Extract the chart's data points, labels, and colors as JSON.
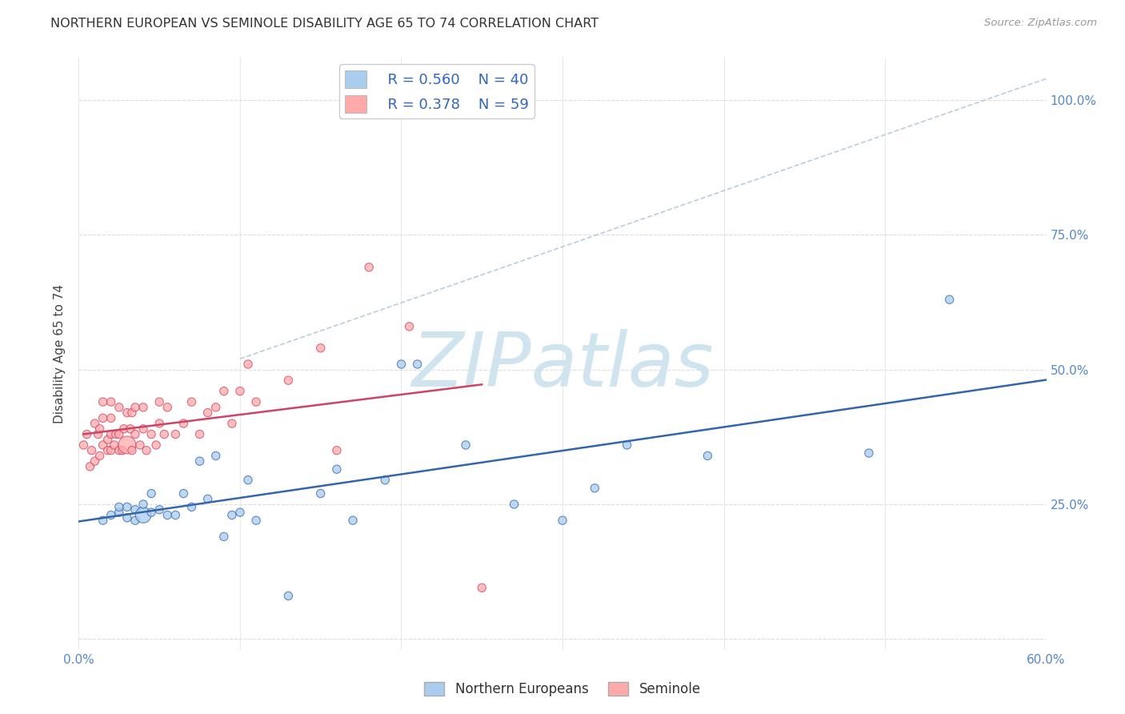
{
  "title": "NORTHERN EUROPEAN VS SEMINOLE DISABILITY AGE 65 TO 74 CORRELATION CHART",
  "source": "Source: ZipAtlas.com",
  "ylabel": "Disability Age 65 to 74",
  "legend_label_1": "Northern Europeans",
  "legend_label_2": "Seminole",
  "R1": 0.56,
  "N1": 40,
  "R2": 0.378,
  "N2": 59,
  "color_blue": "#AACCEE",
  "color_pink": "#FFAAAA",
  "color_line_blue": "#3366AA",
  "color_line_pink": "#CC4466",
  "xlim": [
    0.0,
    0.6
  ],
  "ylim": [
    -0.02,
    1.08
  ],
  "xticks": [
    0.0,
    0.1,
    0.2,
    0.3,
    0.4,
    0.5,
    0.6
  ],
  "xtick_labels": [
    "0.0%",
    "",
    "",
    "",
    "",
    "",
    "60.0%"
  ],
  "yticks": [
    0.0,
    0.25,
    0.5,
    0.75,
    1.0
  ],
  "ytick_labels_right": [
    "",
    "25.0%",
    "50.0%",
    "75.0%",
    "100.0%"
  ],
  "blue_x": [
    0.015,
    0.02,
    0.025,
    0.025,
    0.03,
    0.03,
    0.035,
    0.035,
    0.04,
    0.04,
    0.045,
    0.045,
    0.05,
    0.055,
    0.06,
    0.065,
    0.07,
    0.075,
    0.08,
    0.085,
    0.09,
    0.095,
    0.1,
    0.105,
    0.11,
    0.13,
    0.15,
    0.16,
    0.17,
    0.19,
    0.2,
    0.21,
    0.24,
    0.27,
    0.3,
    0.32,
    0.34,
    0.39,
    0.49,
    0.54
  ],
  "blue_y": [
    0.22,
    0.23,
    0.235,
    0.245,
    0.225,
    0.245,
    0.22,
    0.24,
    0.23,
    0.25,
    0.235,
    0.27,
    0.24,
    0.23,
    0.23,
    0.27,
    0.245,
    0.33,
    0.26,
    0.34,
    0.19,
    0.23,
    0.235,
    0.295,
    0.22,
    0.08,
    0.27,
    0.315,
    0.22,
    0.295,
    0.51,
    0.51,
    0.36,
    0.25,
    0.22,
    0.28,
    0.36,
    0.34,
    0.345,
    0.63
  ],
  "blue_sizes": [
    55,
    55,
    55,
    55,
    55,
    55,
    55,
    55,
    200,
    55,
    55,
    55,
    55,
    55,
    55,
    55,
    55,
    55,
    55,
    55,
    55,
    55,
    55,
    55,
    55,
    55,
    55,
    55,
    55,
    55,
    55,
    55,
    55,
    55,
    55,
    55,
    55,
    55,
    55,
    55
  ],
  "pink_x": [
    0.003,
    0.005,
    0.007,
    0.008,
    0.01,
    0.01,
    0.012,
    0.013,
    0.013,
    0.015,
    0.015,
    0.015,
    0.018,
    0.018,
    0.02,
    0.02,
    0.02,
    0.02,
    0.022,
    0.023,
    0.025,
    0.025,
    0.025,
    0.027,
    0.028,
    0.03,
    0.03,
    0.032,
    0.033,
    0.033,
    0.035,
    0.035,
    0.038,
    0.04,
    0.04,
    0.042,
    0.045,
    0.048,
    0.05,
    0.05,
    0.053,
    0.055,
    0.06,
    0.065,
    0.07,
    0.075,
    0.08,
    0.085,
    0.09,
    0.095,
    0.1,
    0.105,
    0.11,
    0.13,
    0.15,
    0.16,
    0.18,
    0.205,
    0.25
  ],
  "pink_y": [
    0.36,
    0.38,
    0.32,
    0.35,
    0.33,
    0.4,
    0.38,
    0.34,
    0.39,
    0.36,
    0.41,
    0.44,
    0.35,
    0.37,
    0.35,
    0.38,
    0.41,
    0.44,
    0.36,
    0.38,
    0.35,
    0.38,
    0.43,
    0.35,
    0.39,
    0.36,
    0.42,
    0.39,
    0.35,
    0.42,
    0.38,
    0.43,
    0.36,
    0.39,
    0.43,
    0.35,
    0.38,
    0.36,
    0.4,
    0.44,
    0.38,
    0.43,
    0.38,
    0.4,
    0.44,
    0.38,
    0.42,
    0.43,
    0.46,
    0.4,
    0.46,
    0.51,
    0.44,
    0.48,
    0.54,
    0.35,
    0.69,
    0.58,
    0.095
  ],
  "pink_sizes": [
    55,
    55,
    55,
    55,
    55,
    55,
    55,
    55,
    55,
    55,
    55,
    55,
    55,
    55,
    55,
    55,
    55,
    55,
    55,
    55,
    55,
    55,
    55,
    55,
    55,
    250,
    55,
    55,
    55,
    55,
    55,
    55,
    55,
    55,
    55,
    55,
    55,
    55,
    55,
    55,
    55,
    55,
    55,
    55,
    55,
    55,
    55,
    55,
    55,
    55,
    55,
    55,
    55,
    55,
    55,
    55,
    55,
    55,
    55
  ],
  "ref_line_x": [
    0.1,
    0.6
  ],
  "ref_line_y": [
    0.52,
    1.04
  ],
  "watermark": "ZIPatlas",
  "watermark_color": "#D0E4F0",
  "grid_color": "#DDDDDD",
  "background_color": "#FFFFFF",
  "title_fontsize": 11.5,
  "tick_fontsize": 11,
  "legend_fontsize": 13,
  "ylabel_fontsize": 11
}
